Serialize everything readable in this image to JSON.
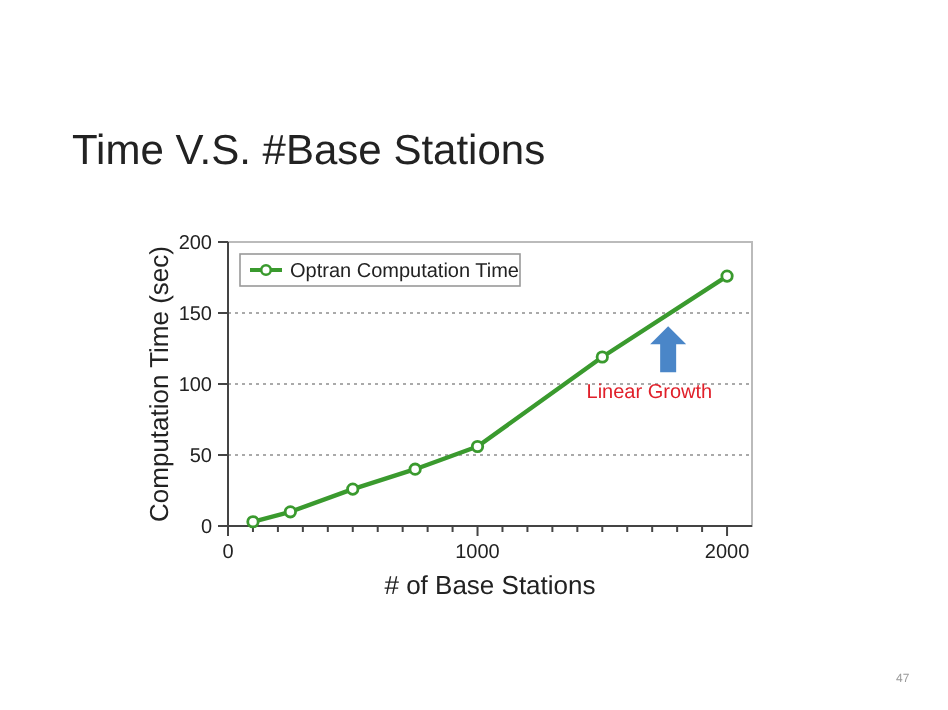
{
  "chart_data": {
    "type": "line",
    "title": "Time V.S. #Base Stations",
    "xlabel": "# of Base Stations",
    "ylabel": "Computation Time (sec)",
    "x": [
      100,
      250,
      500,
      750,
      1000,
      1500,
      2000
    ],
    "series": [
      {
        "name": "Optran Computation Time",
        "color": "#3a9a2e",
        "values": [
          3,
          10,
          26,
          40,
          56,
          119,
          176
        ]
      }
    ],
    "xlim": [
      0,
      2100
    ],
    "xticks": [
      0,
      {
        "value": 100,
        "label": null
      },
      {
        "value": 200,
        "label": null
      },
      {
        "value": 300,
        "label": null
      },
      {
        "value": 400,
        "label": null
      },
      {
        "value": 500,
        "label": null
      },
      {
        "value": 600,
        "label": null
      },
      {
        "value": 700,
        "label": null
      },
      {
        "value": 800,
        "label": null
      },
      {
        "value": 900,
        "label": null
      },
      1000,
      {
        "value": 1100,
        "label": null
      },
      {
        "value": 1200,
        "label": null
      },
      {
        "value": 1300,
        "label": null
      },
      {
        "value": 1400,
        "label": null
      },
      {
        "value": 1500,
        "label": null
      },
      {
        "value": 1600,
        "label": null
      },
      {
        "value": 1700,
        "label": null
      },
      {
        "value": 1800,
        "label": null
      },
      {
        "value": 1900,
        "label": null
      },
      2000
    ],
    "ylim": [
      0,
      200
    ],
    "yticks": [
      0,
      50,
      100,
      150,
      200
    ],
    "grid": "y",
    "legend": "top left",
    "marker": "circle",
    "line_style": "solid",
    "annotations": [
      "Linear Growth",
      "47"
    ]
  }
}
